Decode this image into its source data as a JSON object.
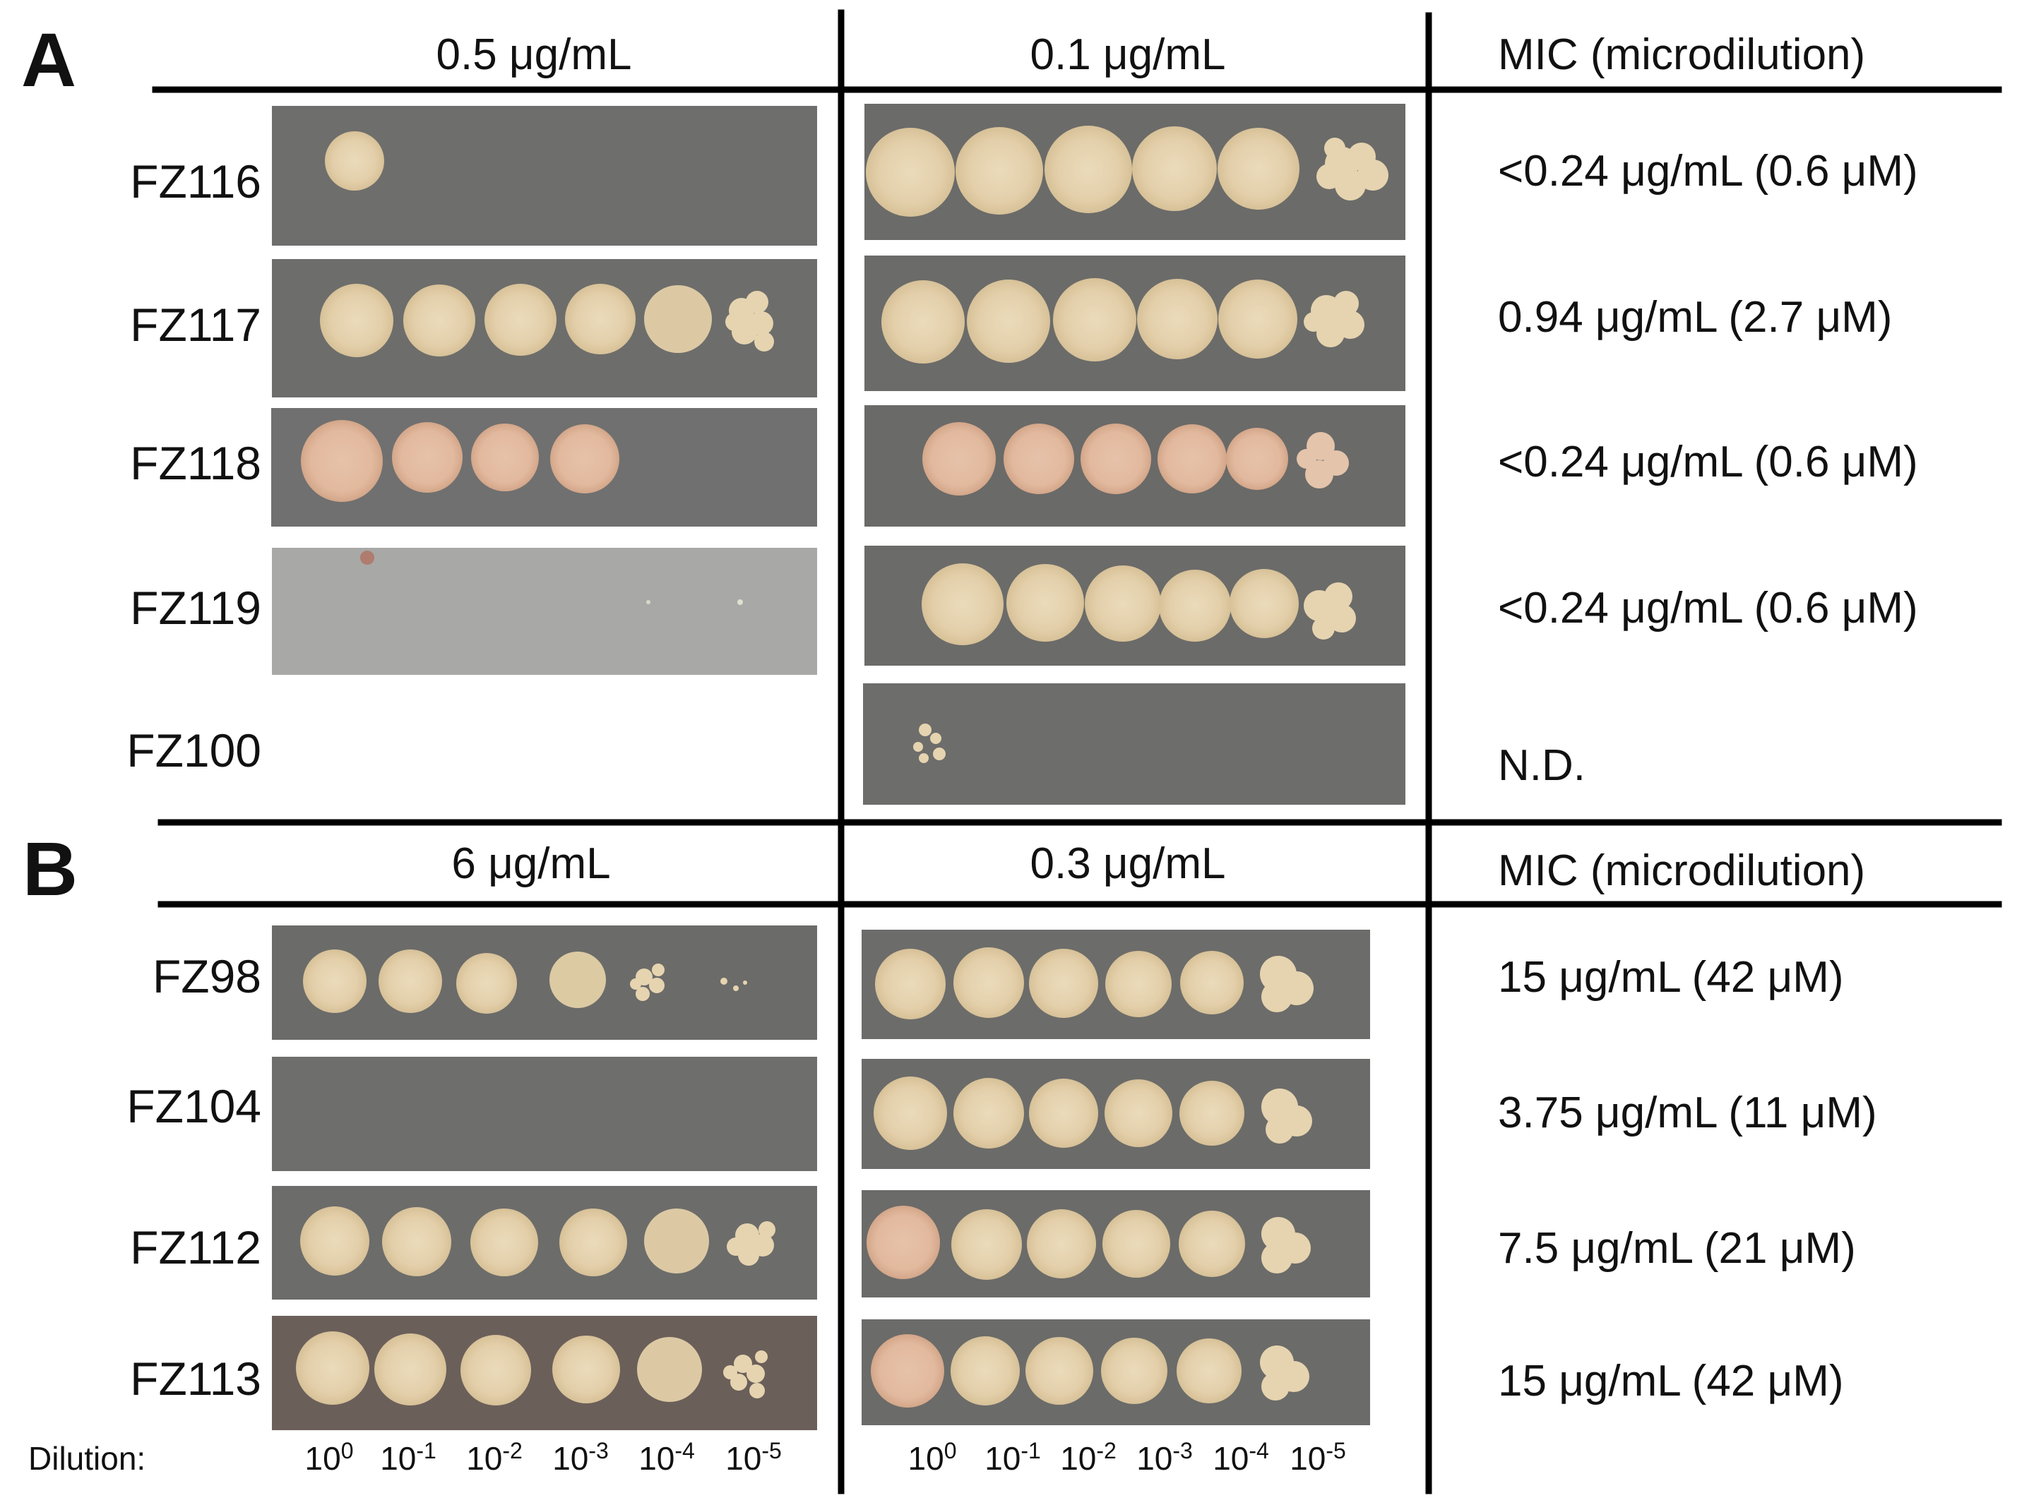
{
  "colors": {
    "plate_dark": "#6b6b69",
    "plate_mid": "#737371",
    "plate_light": "#a6a6a4",
    "colony": "#e3cfaa",
    "colony_edge": "#d6bf98",
    "colony_pink": "#e0b8a0",
    "line": "#000000",
    "text": "#111111"
  },
  "panel_a": {
    "letter": "A",
    "conc_left": "0.5 μg/mL",
    "conc_right": "0.1 μg/mL",
    "mic_header": "MIC (microdilution)",
    "rows": [
      {
        "strain": "FZ116",
        "mic": "<0.24 μg/mL (0.6 μM)",
        "left_growth": "1 spot (10^0)",
        "right_growth": "6 spots (10^0 to 10^-5)"
      },
      {
        "strain": "FZ117",
        "mic": "0.94 μg/mL (2.7 μM)",
        "left_growth": "6 spots",
        "right_growth": "6 spots"
      },
      {
        "strain": "FZ118",
        "mic": "<0.24 μg/mL (0.6 μM)",
        "left_growth": "4 spots",
        "right_growth": "6 spots"
      },
      {
        "strain": "FZ119",
        "mic": "<0.24 μg/mL (0.6 μM)",
        "left_growth": "no spots",
        "right_growth": "6 spots"
      },
      {
        "strain": "FZ100",
        "mic": "N.D.",
        "left_growth": "no plate",
        "right_growth": "few colonies at 10^0"
      }
    ]
  },
  "panel_b": {
    "letter": "B",
    "conc_left": "6 μg/mL",
    "conc_right": "0.3 μg/mL",
    "mic_header": "MIC (microdilution)",
    "rows": [
      {
        "strain": "FZ98",
        "mic": "15 μg/mL (42 μM)",
        "left_growth": "6 spots (last sparse)",
        "right_growth": "6 spots"
      },
      {
        "strain": "FZ104",
        "mic": "3.75 μg/mL (11 μM)",
        "left_growth": "no spots",
        "right_growth": "6 spots"
      },
      {
        "strain": "FZ112",
        "mic": "7.5 μg/mL (21 μM)",
        "left_growth": "6 spots",
        "right_growth": "6 spots"
      },
      {
        "strain": "FZ113",
        "mic": "15 μg/mL (42 μM)",
        "left_growth": "6 spots",
        "right_growth": "6 spots"
      }
    ]
  },
  "dilution": {
    "label": "Dilution:",
    "base": "10",
    "exponents": [
      "0",
      "-1",
      "-2",
      "-3",
      "-4",
      "-5"
    ]
  }
}
